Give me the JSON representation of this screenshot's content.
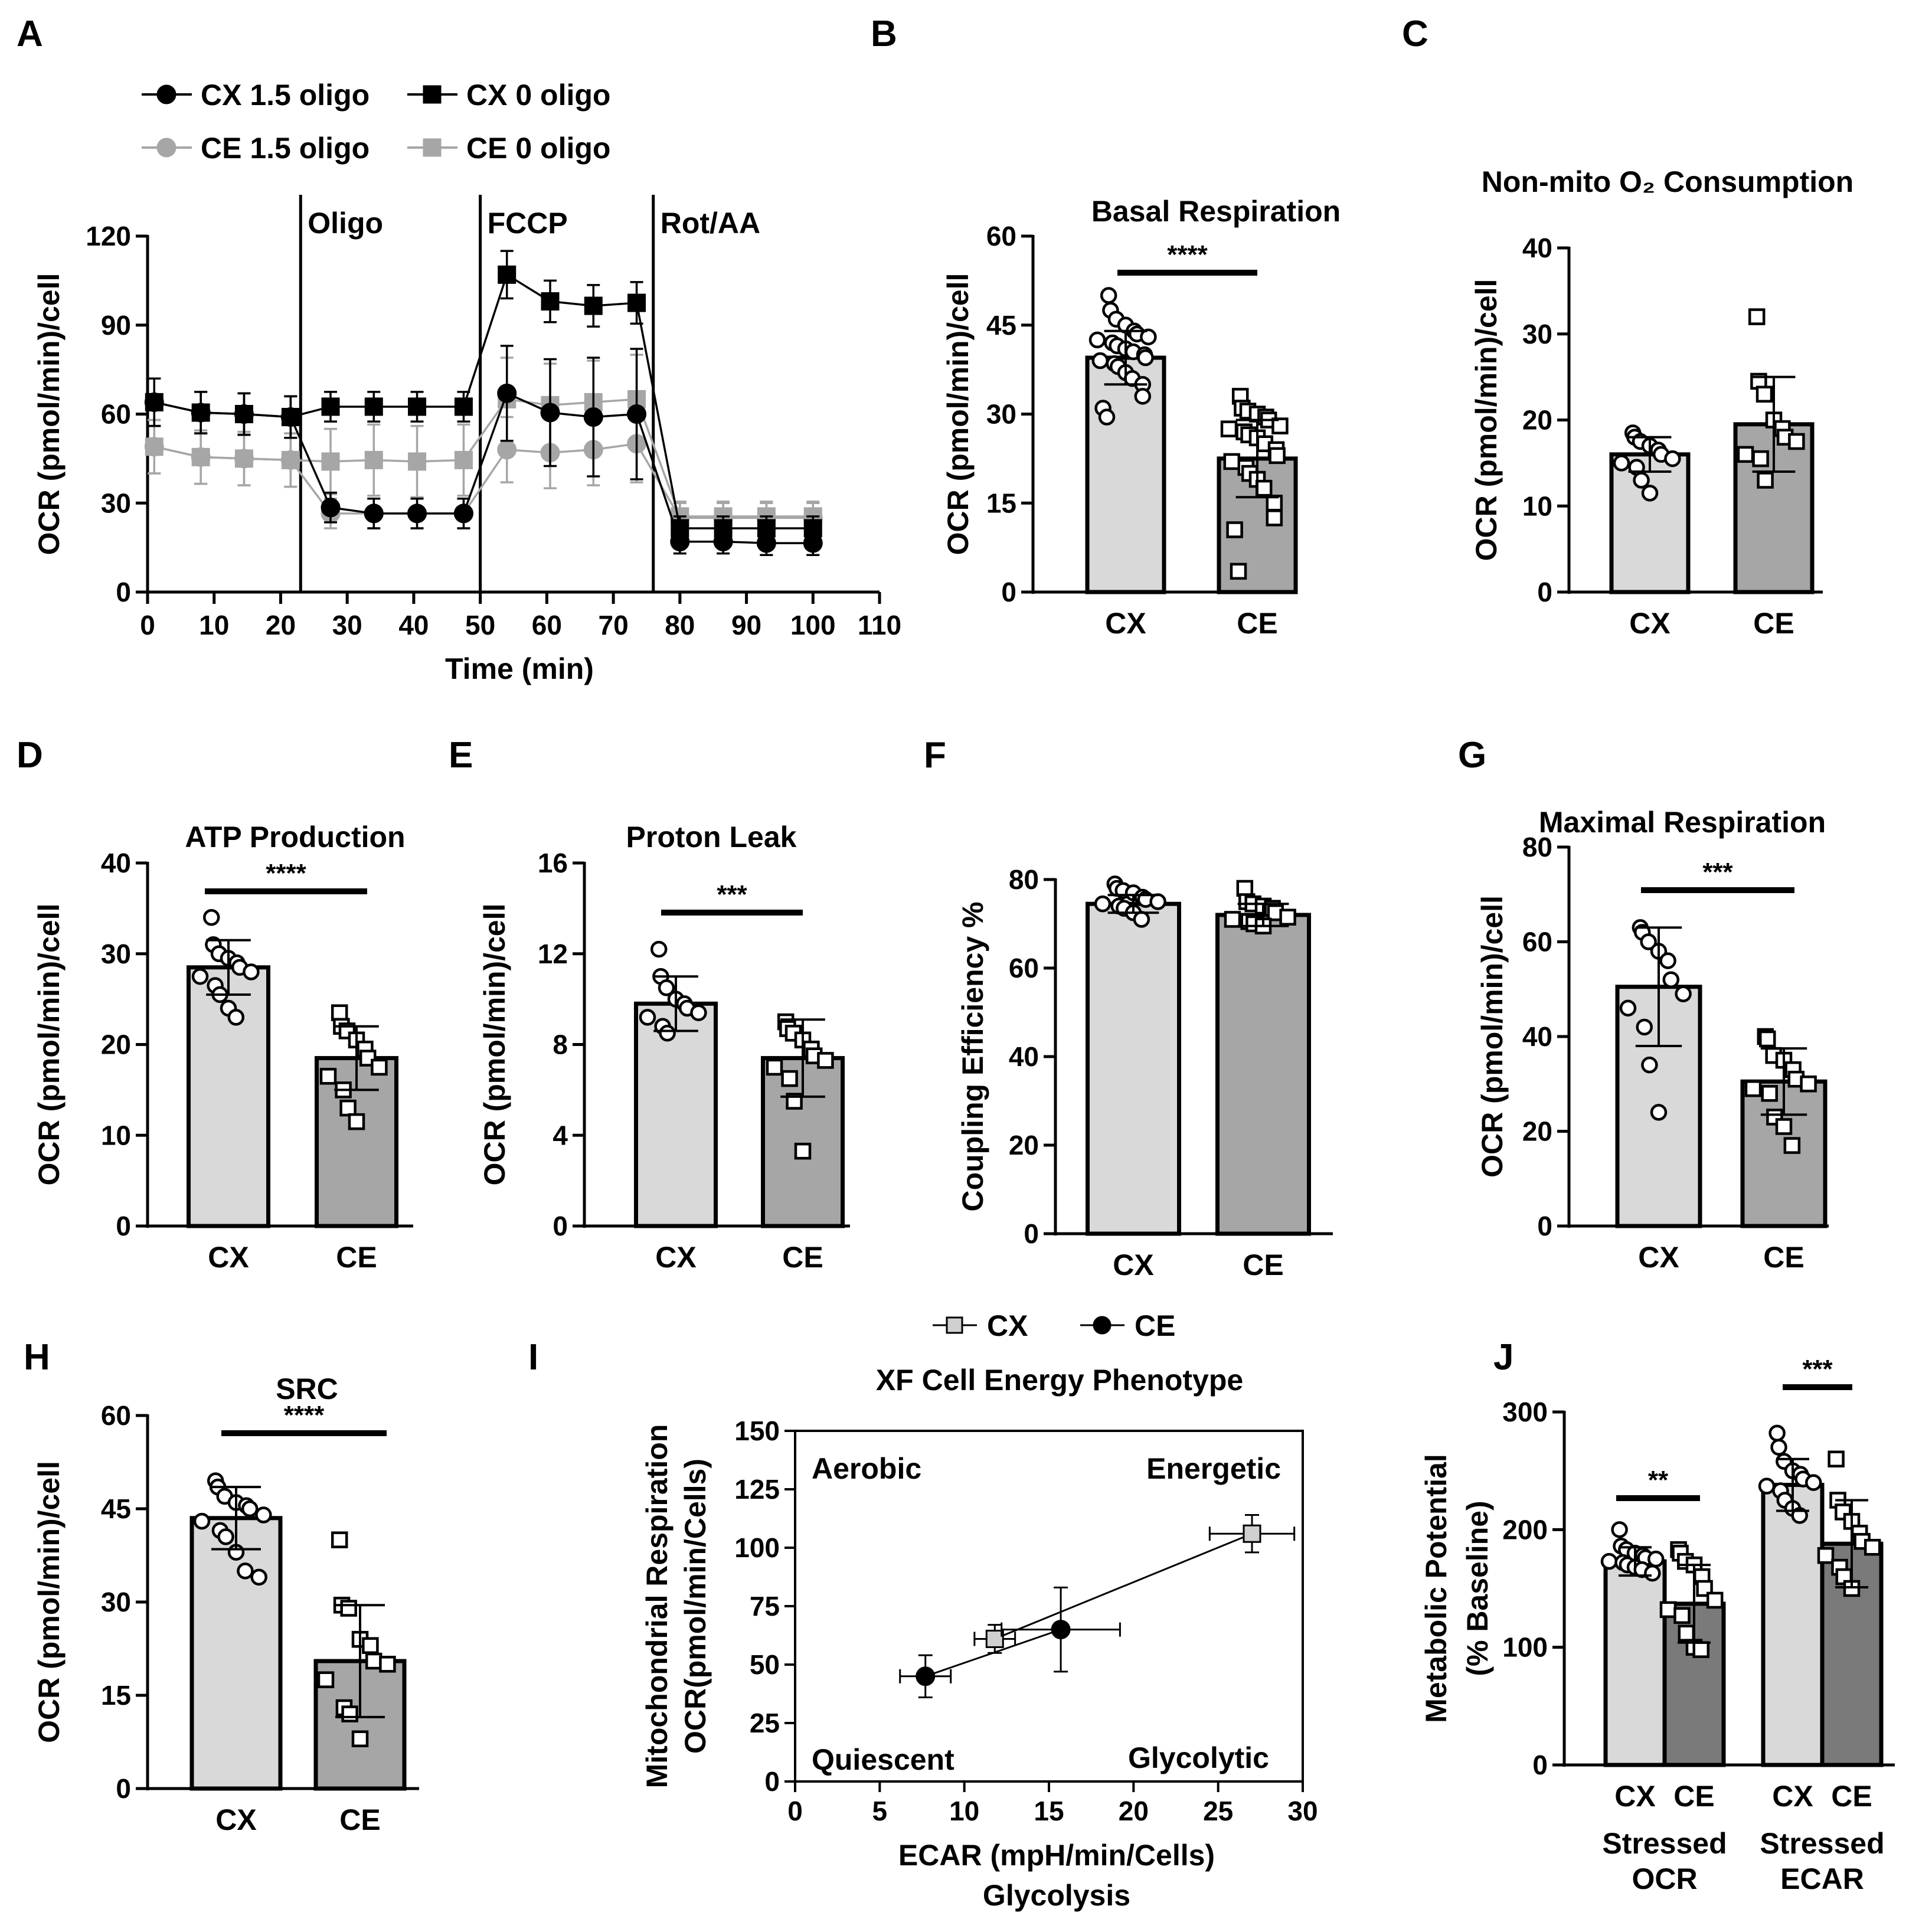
{
  "colors": {
    "cx_bar": "#d9d9d9",
    "ce_bar": "#a6a6a6",
    "ce_bar_dark": "#7a7a7a",
    "black": "#000000",
    "grey_line": "#a6a6a6"
  },
  "chart_data": [
    {
      "id": "A",
      "panel": "A",
      "type": "line",
      "xlabel": "Time (min)",
      "ylabel": "OCR (pmol/min)/cell",
      "xlim": [
        0,
        110
      ],
      "ylim": [
        0,
        120
      ],
      "xticks": [
        "0",
        "10",
        "20",
        "30",
        "40",
        "50",
        "60",
        "70",
        "80",
        "90",
        "100",
        "110"
      ],
      "yticks": [
        "0",
        "30",
        "60",
        "90",
        "120"
      ],
      "injections": [
        {
          "x": 23,
          "label": "Oligo"
        },
        {
          "x": 50,
          "label": "FCCP"
        },
        {
          "x": 76,
          "label": "Rot/AA"
        }
      ],
      "x": [
        1,
        8,
        14.5,
        21.5,
        27.5,
        34,
        40.5,
        47.5,
        54,
        60.5,
        67,
        73.5,
        80,
        86.5,
        93,
        100
      ],
      "series": [
        {
          "name": "CX 1.5 oligo",
          "marker": "circle",
          "color": "#000000",
          "values": [
            64,
            60.5,
            60,
            59,
            28.5,
            26.5,
            26.5,
            26.5,
            67,
            60.5,
            59,
            60,
            17,
            17,
            16.5,
            16.5
          ],
          "err": [
            8,
            7,
            7,
            7,
            5,
            5,
            5,
            5,
            16,
            18,
            20,
            22,
            4,
            4,
            4,
            4
          ]
        },
        {
          "name": "CX 0 oligo",
          "marker": "square",
          "color": "#000000",
          "values": [
            64,
            60.5,
            60,
            59,
            62.5,
            62.5,
            62.5,
            62.5,
            107,
            98,
            96.5,
            97.5,
            21.5,
            21.5,
            21.5,
            21.5
          ],
          "err": [
            8,
            7,
            7,
            7,
            5,
            5,
            5,
            5,
            8,
            7,
            7,
            7,
            4,
            4,
            4,
            4
          ]
        },
        {
          "name": "CE 1.5 oligo",
          "marker": "circle",
          "color": "#a6a6a6",
          "values": [
            49,
            45.5,
            45,
            44.5,
            26.5,
            26.5,
            26.5,
            26.5,
            48,
            47,
            48,
            50,
            25,
            25,
            25,
            25
          ],
          "err": [
            9,
            9,
            9,
            9,
            5,
            5,
            5,
            5,
            11,
            12,
            12,
            13,
            5,
            5,
            5,
            5
          ]
        },
        {
          "name": "CE 0 oligo",
          "marker": "square",
          "color": "#a6a6a6",
          "values": [
            49,
            45.5,
            45,
            44.5,
            44,
            44.5,
            44,
            44.5,
            65,
            63,
            64,
            65,
            25.5,
            25.5,
            25.5,
            25.5
          ],
          "err": [
            9,
            9,
            9,
            9,
            11,
            12,
            12,
            12,
            14,
            14,
            14,
            15,
            5,
            5,
            5,
            5
          ]
        }
      ]
    },
    {
      "id": "B",
      "panel": "B",
      "type": "bar",
      "title": "Basal Respiration",
      "ylabel": "OCR (pmol/min)/cell",
      "ylim": [
        0,
        60
      ],
      "yticks": [
        "0",
        "15",
        "30",
        "45",
        "60"
      ],
      "categories": [
        "CX",
        "CE"
      ],
      "values": [
        39.5,
        22.5
      ],
      "err": [
        4.5,
        6.5
      ],
      "sig": "****",
      "points": [
        [
          50,
          47.5,
          46,
          45,
          44,
          43.5,
          43,
          42.5,
          42,
          41.5,
          41,
          40.5,
          40,
          39.5,
          39,
          38.5,
          38,
          37,
          36,
          35,
          33,
          31,
          29.5
        ],
        [
          33,
          31,
          30.5,
          30,
          29.5,
          29,
          28,
          27.5,
          27,
          26.5,
          26,
          25,
          24,
          23,
          22,
          21,
          20,
          19,
          17.5,
          15,
          12.5,
          10.5,
          3.5
        ]
      ]
    },
    {
      "id": "C",
      "panel": "C",
      "type": "bar",
      "title": "Non-mito O₂ Consumption",
      "ylabel": "OCR (pmol/min)/cell",
      "ylim": [
        0,
        40
      ],
      "yticks": [
        "0",
        "10",
        "20",
        "30",
        "40"
      ],
      "categories": [
        "CX",
        "CE"
      ],
      "values": [
        16,
        19.5
      ],
      "err": [
        2,
        5.5
      ],
      "sig": "",
      "points": [
        [
          18.5,
          18,
          17.5,
          17,
          16.5,
          16,
          15.5,
          15,
          14.5,
          13,
          11.5
        ],
        [
          32,
          24.5,
          23,
          20,
          19,
          18,
          17.5,
          16,
          15.5,
          13
        ]
      ]
    },
    {
      "id": "D",
      "panel": "D",
      "type": "bar",
      "title": "ATP Production",
      "ylabel": "OCR (pmol/min)/cell",
      "ylim": [
        0,
        40
      ],
      "yticks": [
        "0",
        "10",
        "20",
        "30",
        "40"
      ],
      "categories": [
        "CX",
        "CE"
      ],
      "values": [
        28.5,
        18.5
      ],
      "err": [
        3,
        3.5
      ],
      "sig": "****",
      "points": [
        [
          34,
          31,
          30,
          29.5,
          29,
          28.5,
          28,
          27.5,
          26.5,
          25.5,
          24,
          23
        ],
        [
          23.5,
          22,
          21.5,
          20.5,
          19.5,
          18.5,
          17.5,
          16.5,
          15,
          13,
          11.5
        ]
      ]
    },
    {
      "id": "E",
      "panel": "E",
      "type": "bar",
      "title": "Proton Leak",
      "ylabel": "OCR (pmol/min)/cell",
      "ylim": [
        0,
        16
      ],
      "yticks": [
        "0",
        "4",
        "8",
        "12",
        "16"
      ],
      "categories": [
        "CX",
        "CE"
      ],
      "values": [
        9.8,
        7.4
      ],
      "err": [
        1.2,
        1.7
      ],
      "sig": "***",
      "points": [
        [
          12.2,
          11,
          10.5,
          10,
          9.8,
          9.6,
          9.4,
          9.2,
          8.8,
          8.5
        ],
        [
          9,
          8.7,
          8.5,
          8.2,
          7.8,
          7.5,
          7.3,
          7,
          6.5,
          5.5,
          3.3
        ]
      ]
    },
    {
      "id": "F",
      "panel": "F",
      "type": "bar",
      "title": "",
      "ylabel": "Coupling Efficiency %",
      "ylim": [
        0,
        80
      ],
      "yticks": [
        "0",
        "20",
        "40",
        "60",
        "80"
      ],
      "categories": [
        "CX",
        "CE"
      ],
      "values": [
        74.5,
        72
      ],
      "err": [
        2,
        2.5
      ],
      "sig": "",
      "points": [
        [
          79,
          78,
          77.5,
          77,
          76,
          75.5,
          75,
          74.5,
          74,
          73.5,
          72.5,
          71
        ],
        [
          78,
          75,
          74.5,
          74,
          73.5,
          72.5,
          71.5,
          71,
          70.5,
          70,
          69.5
        ]
      ]
    },
    {
      "id": "G",
      "panel": "G",
      "type": "bar",
      "title": "Maximal Respiration",
      "ylabel": "OCR (pmol/min)/cell",
      "ylim": [
        0,
        80
      ],
      "yticks": [
        "0",
        "20",
        "40",
        "60",
        "80"
      ],
      "categories": [
        "CX",
        "CE"
      ],
      "values": [
        50.5,
        30.5
      ],
      "err": [
        12.5,
        7
      ],
      "sig": "***",
      "points": [
        [
          63,
          62,
          60,
          58,
          56,
          52,
          49,
          46,
          42,
          34,
          24
        ],
        [
          40,
          39.5,
          36,
          35,
          33,
          31,
          30,
          29,
          28,
          23,
          21,
          17
        ]
      ]
    },
    {
      "id": "H",
      "panel": "H",
      "type": "bar",
      "title": "SRC",
      "ylabel": "OCR (pmol/min)/cell",
      "ylim": [
        0,
        60
      ],
      "yticks": [
        "0",
        "15",
        "30",
        "45",
        "60"
      ],
      "categories": [
        "CX",
        "CE"
      ],
      "values": [
        43.5,
        20.5
      ],
      "err": [
        5,
        9
      ],
      "sig": "****",
      "points": [
        [
          49.5,
          48.5,
          47,
          46,
          45.5,
          45,
          44,
          43,
          41.5,
          40.5,
          38,
          35,
          34
        ],
        [
          40,
          29.5,
          29,
          24,
          23,
          20.5,
          20,
          17.5,
          13,
          12,
          8
        ]
      ]
    },
    {
      "id": "I",
      "panel": "I",
      "type": "scatter",
      "title": "XF Cell Energy Phenotype",
      "xlabel": "ECAR (mpH/min/Cells)",
      "xlabel2": "Glycolysis",
      "ylabel": "Mitochondrial Respiration",
      "ylabel2": "OCR(pmol/min/Cells)",
      "xlim": [
        0,
        30
      ],
      "ylim": [
        0,
        150
      ],
      "xticks": [
        "0",
        "5",
        "10",
        "15",
        "20",
        "25",
        "30"
      ],
      "yticks": [
        "0",
        "25",
        "50",
        "75",
        "100",
        "125",
        "150"
      ],
      "quadrants": [
        "Aerobic",
        "Energetic",
        "Quiescent",
        "Glycolytic"
      ],
      "series": [
        {
          "name": "CX",
          "marker": "square",
          "color": "#d0d0d0",
          "points": [
            {
              "x": 11.8,
              "y": 61,
              "xerr": 1.2,
              "yerr": 6
            },
            {
              "x": 27,
              "y": 106,
              "xerr": 2.5,
              "yerr": 8
            }
          ]
        },
        {
          "name": "CE",
          "marker": "circle",
          "color": "#000000",
          "points": [
            {
              "x": 7.7,
              "y": 45,
              "xerr": 1.5,
              "yerr": 9
            },
            {
              "x": 15.7,
              "y": 65,
              "xerr": 3.5,
              "yerr": 18
            }
          ]
        }
      ]
    },
    {
      "id": "J",
      "panel": "J",
      "type": "bar",
      "ylabel": "Metabolic Potential",
      "ylabel2": "(% Baseline)",
      "ylim": [
        0,
        300
      ],
      "yticks": [
        "0",
        "100",
        "200",
        "300"
      ],
      "categories": [
        "CX",
        "CE",
        "CX",
        "CE"
      ],
      "group_labels": [
        [
          "Stressed",
          "OCR"
        ],
        [
          "Stressed",
          "ECAR"
        ]
      ],
      "values": [
        173,
        137,
        238,
        188
      ],
      "err": [
        12,
        33,
        22,
        37
      ],
      "sig": [
        "**",
        "***"
      ],
      "points": [
        [
          200,
          186,
          183,
          180,
          178,
          176,
          175,
          173,
          172,
          170,
          168,
          166,
          163
        ],
        [
          183,
          180,
          173,
          170,
          160,
          150,
          140,
          132,
          127,
          112,
          100,
          98
        ],
        [
          282,
          270,
          258,
          250,
          247,
          243,
          240,
          237,
          233,
          225,
          218,
          212
        ],
        [
          260,
          225,
          215,
          207,
          197,
          190,
          185,
          178,
          168,
          160,
          150
        ]
      ]
    }
  ]
}
